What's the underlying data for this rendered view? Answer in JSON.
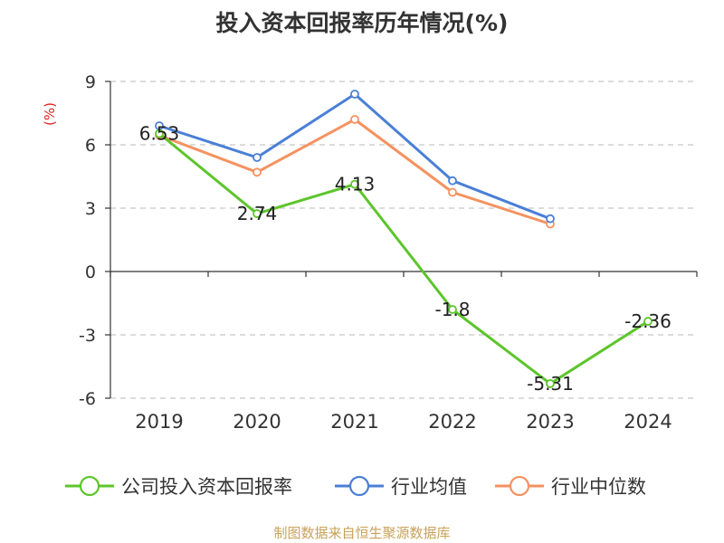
{
  "title": "投入资本回报率历年情况(%)",
  "source": "制图数据来自恒生聚源数据库",
  "chart_data": {
    "type": "line",
    "unit_label": "(%)",
    "categories": [
      "2019",
      "2020",
      "2021",
      "2022",
      "2023",
      "2024"
    ],
    "ylim": [
      -6,
      9
    ],
    "yticks": [
      9,
      6,
      3,
      0,
      -3,
      -6
    ],
    "grid": true,
    "legend_position": "bottom",
    "series": [
      {
        "name": "公司投入资本回报率",
        "color": "#5cc52b",
        "values": [
          6.53,
          2.74,
          4.13,
          -1.8,
          -5.31,
          -2.36
        ],
        "labels": [
          "6.53",
          "2.74",
          "4.13",
          "-1.8",
          "-5.31",
          "-2.36"
        ]
      },
      {
        "name": "行业均值",
        "color": "#4a7fd6",
        "values": [
          6.9,
          5.4,
          8.4,
          4.3,
          2.5,
          null
        ]
      },
      {
        "name": "行业中位数",
        "color": "#f59260",
        "values": [
          6.45,
          4.7,
          7.2,
          3.75,
          2.25,
          null
        ]
      }
    ]
  }
}
